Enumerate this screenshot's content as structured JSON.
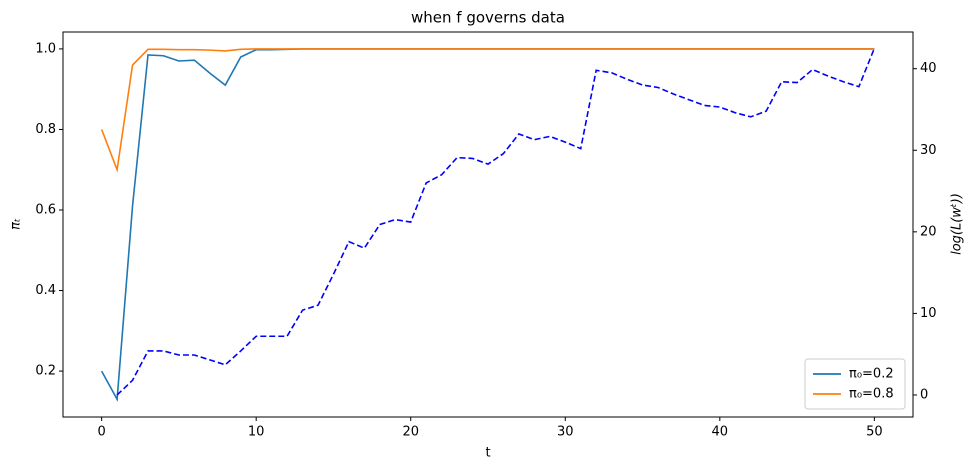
{
  "chart_data": {
    "type": "line",
    "title": "when f governs data",
    "xlabel": "t",
    "ylabel": "πₜ",
    "y2label": "log(L(wᵗ))",
    "x": [
      0,
      1,
      2,
      3,
      4,
      5,
      6,
      7,
      8,
      9,
      10,
      11,
      12,
      13,
      14,
      15,
      16,
      17,
      18,
      19,
      20,
      21,
      22,
      23,
      24,
      25,
      26,
      27,
      28,
      29,
      30,
      31,
      32,
      33,
      34,
      35,
      36,
      37,
      38,
      39,
      40,
      41,
      42,
      43,
      44,
      45,
      46,
      47,
      48,
      49,
      50
    ],
    "xlim": [
      -2.5,
      52.5
    ],
    "xticks": [
      0,
      10,
      20,
      30,
      40,
      50
    ],
    "ylim": [
      0.086,
      1.042
    ],
    "yticks": [
      0.2,
      0.4,
      0.6,
      0.8,
      {
        "value": 1,
        "label": "1.0"
      }
    ],
    "y2lim": [
      -2.7,
      44.5
    ],
    "y2ticks": [
      0,
      10,
      20,
      30,
      40
    ],
    "legend": "lower right",
    "series": [
      {
        "name": "π₀=0.2",
        "color": "#1f77b4",
        "values": [
          0.2,
          0.13,
          0.61,
          0.985,
          0.983,
          0.97,
          0.972,
          0.94,
          0.91,
          0.98,
          0.998,
          0.998,
          0.999,
          1,
          1,
          1,
          1,
          1,
          1,
          1,
          1,
          1,
          1,
          1,
          1,
          1,
          1,
          1,
          1,
          1,
          1,
          1,
          1,
          1,
          1,
          1,
          1,
          1,
          1,
          1,
          1,
          1,
          1,
          1,
          1,
          1,
          1,
          1,
          1,
          1,
          1
        ]
      },
      {
        "name": "π₀=0.8",
        "color": "#ff7f0e",
        "values": [
          0.8,
          0.7,
          0.96,
          0.999,
          0.999,
          0.998,
          0.998,
          0.997,
          0.995,
          0.999,
          1,
          1,
          1,
          1,
          1,
          1,
          1,
          1,
          1,
          1,
          1,
          1,
          1,
          1,
          1,
          1,
          1,
          1,
          1,
          1,
          1,
          1,
          1,
          1,
          1,
          1,
          1,
          1,
          1,
          1,
          1,
          1,
          1,
          1,
          1,
          1,
          1,
          1,
          1,
          1,
          1
        ]
      },
      {
        "color": "#0000ff",
        "dashed": true,
        "axis": "y2",
        "values": [
          null,
          0,
          1.8,
          5.4,
          5.4,
          4.9,
          4.9,
          4.3,
          3.7,
          5.4,
          7.2,
          7.2,
          7.2,
          10.4,
          11.0,
          14.8,
          18.8,
          18.0,
          20.9,
          21.5,
          21.2,
          26.0,
          27.0,
          29.1,
          29.0,
          28.3,
          29.6,
          32.0,
          31.3,
          31.7,
          31.0,
          30.2,
          39.8,
          39.5,
          38.7,
          38.0,
          37.7,
          36.9,
          36.2,
          35.5,
          35.3,
          34.6,
          34.1,
          34.8,
          38.4,
          38.3,
          39.9,
          39.1,
          38.4,
          37.8,
          42.5
        ]
      }
    ]
  }
}
